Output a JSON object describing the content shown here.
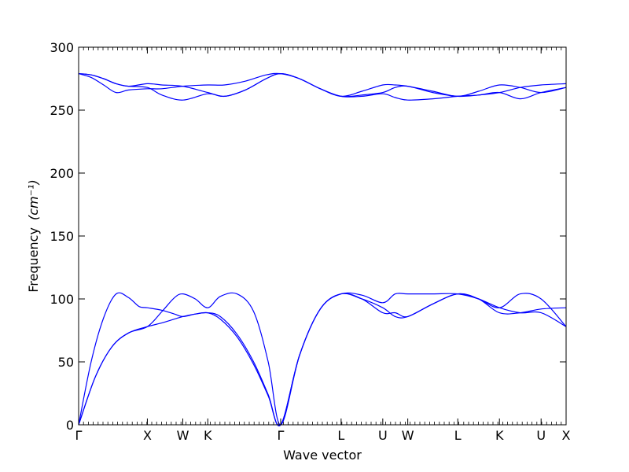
{
  "chart_data": {
    "type": "line",
    "title": "",
    "xlabel": "Wave vector",
    "ylabel": "Frequency",
    "ylabel_unit": "(cm⁻¹)",
    "ylim": [
      0,
      300
    ],
    "yticks": [
      0,
      50,
      100,
      150,
      200,
      250,
      300
    ],
    "xlim": [
      0,
      11.7
    ],
    "grid": false,
    "legend": "none",
    "line_color": "#0000ff",
    "high_symmetry_points": [
      {
        "label": "Γ",
        "x": 0.0
      },
      {
        "label": "X",
        "x": 1.65
      },
      {
        "label": "W",
        "x": 2.5
      },
      {
        "label": "K",
        "x": 3.1
      },
      {
        "label": "Γ",
        "x": 4.85
      },
      {
        "label": "L",
        "x": 6.3
      },
      {
        "label": "U",
        "x": 7.3
      },
      {
        "label": "W",
        "x": 7.9
      },
      {
        "label": "L",
        "x": 9.1
      },
      {
        "label": "K",
        "x": 10.1
      },
      {
        "label": "U",
        "x": 11.1
      },
      {
        "label": "X",
        "x": 11.7
      }
    ],
    "series": [
      {
        "x": [
          0,
          0.3,
          0.6,
          0.9,
          1.2,
          1.45,
          1.65,
          2.0,
          2.3,
          2.5,
          2.8,
          3.1,
          3.4,
          3.8,
          4.2,
          4.55,
          4.85,
          5.3,
          5.8,
          6.3,
          6.8,
          7.3,
          7.6,
          7.9,
          8.5,
          9.1,
          9.6,
          10.1,
          10.6,
          11.1,
          11.7
        ],
        "y": [
          0,
          50,
          85,
          104,
          101,
          94,
          93,
          91,
          88,
          86,
          88,
          89,
          84,
          70,
          48,
          23,
          0,
          55,
          92,
          104,
          100,
          89,
          89,
          86,
          96,
          104,
          100,
          93,
          89,
          89,
          78
        ]
      },
      {
        "x": [
          0,
          0.4,
          0.8,
          1.2,
          1.65,
          2.0,
          2.3,
          2.5,
          2.8,
          3.1,
          3.4,
          3.8,
          4.2,
          4.55,
          4.85,
          5.3,
          5.8,
          6.3,
          6.8,
          7.3,
          7.6,
          7.9,
          8.5,
          9.1,
          9.6,
          10.1,
          10.6,
          11.1,
          11.7
        ],
        "y": [
          0,
          38,
          62,
          73,
          78,
          81,
          84,
          86,
          88,
          89,
          86,
          72,
          50,
          24,
          0,
          55,
          92,
          104,
          100,
          93,
          86,
          86,
          96,
          104,
          100,
          89,
          89,
          92,
          93
        ]
      },
      {
        "x": [
          0,
          0.4,
          0.8,
          1.2,
          1.65,
          2.0,
          2.3,
          2.5,
          2.8,
          3.1,
          3.4,
          3.8,
          4.2,
          4.55,
          4.85,
          5.3,
          5.8,
          6.3,
          6.8,
          7.3,
          7.6,
          7.9,
          8.5,
          9.1,
          9.6,
          10.1,
          10.6,
          11.1,
          11.7
        ],
        "y": [
          0,
          38,
          62,
          73,
          78,
          90,
          101,
          104,
          100,
          93,
          102,
          104,
          90,
          50,
          0,
          55,
          92,
          104,
          103,
          97,
          104,
          104,
          104,
          104,
          100,
          93,
          104,
          100,
          78
        ]
      },
      {
        "x": [
          0,
          0.3,
          0.6,
          0.9,
          1.2,
          1.65,
          2.0,
          2.5,
          3.1,
          3.5,
          4.0,
          4.5,
          4.85,
          5.3,
          5.8,
          6.3,
          6.8,
          7.3,
          7.6,
          7.9,
          8.5,
          9.1,
          9.6,
          10.1,
          10.6,
          11.1,
          11.7
        ],
        "y": [
          279,
          276,
          270,
          264,
          266,
          267,
          267,
          269,
          270,
          270,
          273,
          278,
          279,
          275,
          267,
          261,
          262,
          264,
          268,
          269,
          264,
          261,
          262,
          264,
          268,
          270,
          271
        ]
      },
      {
        "x": [
          0,
          0.3,
          0.6,
          0.9,
          1.2,
          1.65,
          2.0,
          2.5,
          3.1,
          3.5,
          4.0,
          4.5,
          4.85,
          5.3,
          5.8,
          6.3,
          6.8,
          7.3,
          7.6,
          7.9,
          8.5,
          9.1,
          9.6,
          10.1,
          10.6,
          11.1,
          11.7
        ],
        "y": [
          279,
          278,
          275,
          271,
          269,
          271,
          270,
          269,
          264,
          261,
          266,
          275,
          279,
          275,
          267,
          261,
          265,
          270,
          270,
          269,
          265,
          261,
          265,
          270,
          268,
          264,
          268
        ]
      },
      {
        "x": [
          0,
          0.3,
          0.6,
          0.9,
          1.2,
          1.65,
          2.0,
          2.5,
          3.1,
          3.5,
          4.0,
          4.5,
          4.85,
          5.3,
          5.8,
          6.3,
          6.8,
          7.3,
          7.6,
          7.9,
          8.5,
          9.1,
          9.6,
          10.1,
          10.6,
          11.1,
          11.7
        ],
        "y": [
          279,
          278,
          275,
          271,
          269,
          268,
          262,
          258,
          263,
          261,
          266,
          275,
          279,
          275,
          267,
          261,
          261,
          263,
          260,
          258,
          259,
          261,
          262,
          264,
          259,
          264,
          268
        ]
      }
    ]
  }
}
